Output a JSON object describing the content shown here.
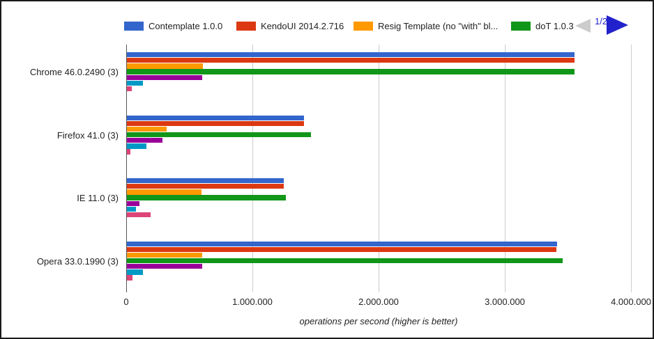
{
  "window": {
    "background": "#ffffff",
    "border_color": "#1a1a1a"
  },
  "legend": {
    "items": [
      {
        "label": "Contemplate 1.0.0",
        "color": "#3366CC"
      },
      {
        "label": "KendoUI 2014.2.716",
        "color": "#DC3912"
      },
      {
        "label": "Resig Template (no \"with\" bl...",
        "color": "#FF9900"
      },
      {
        "label": "doT 1.0.3",
        "color": "#109618"
      }
    ],
    "pagination": {
      "current_page_label": "1/2",
      "prev_arrow_color": "#cccccc",
      "next_arrow_color": "#2222cc"
    }
  },
  "chart_data": {
    "type": "bar",
    "orientation": "horizontal",
    "title": "",
    "xlabel": "operations per second (higher is better)",
    "ylabel": "",
    "xlim": [
      0,
      4000000
    ],
    "x_ticks": [
      "0",
      "1.000.000",
      "2.000.000",
      "3.000.000",
      "4.000.000"
    ],
    "x_tick_values": [
      0,
      1000000,
      2000000,
      3000000,
      4000000
    ],
    "grid": true,
    "legend_position": "top",
    "legend_pages": "1/2",
    "categories": [
      "Chrome 46.0.2490 (3)",
      "Firefox 41.0 (3)",
      "IE 11.0 (3)",
      "Opera 33.0.1990 (3)"
    ],
    "series": [
      {
        "name": "Contemplate 1.0.0",
        "color": "#3366CC",
        "values": [
          3555000,
          1410000,
          1250000,
          3415000
        ]
      },
      {
        "name": "KendoUI 2014.2.716",
        "color": "#DC3912",
        "values": [
          3550000,
          1410000,
          1250000,
          3410000
        ]
      },
      {
        "name": "Resig Template (no \"with\" bl...",
        "color": "#FF9900",
        "values": [
          605000,
          320000,
          595000,
          600000
        ]
      },
      {
        "name": "doT 1.0.3",
        "color": "#109618",
        "values": [
          3550000,
          1465000,
          1265000,
          3460000
        ]
      },
      {
        "name": "",
        "color": "#990099",
        "values": [
          600000,
          290000,
          105000,
          600000
        ]
      },
      {
        "name": "",
        "color": "#0099C6",
        "values": [
          135000,
          160000,
          80000,
          135000
        ]
      },
      {
        "name": "",
        "color": "#DD4477",
        "values": [
          45000,
          35000,
          195000,
          50000
        ]
      }
    ]
  }
}
